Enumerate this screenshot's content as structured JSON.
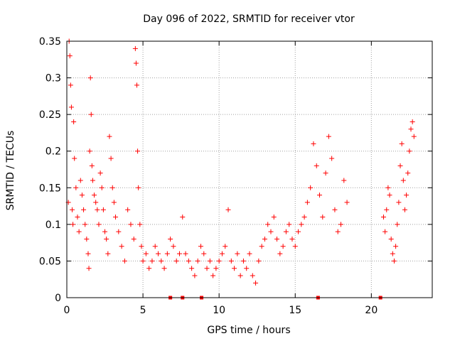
{
  "chart_data": {
    "type": "scatter",
    "title": "Day 096 of 2022, SRMTID for receiver vtor",
    "xlabel": "GPS time / hours",
    "ylabel": "SRMTID / TECUs",
    "xlim": [
      0,
      24
    ],
    "ylim": [
      0,
      0.35
    ],
    "x_ticks": [
      0,
      5,
      10,
      15,
      20
    ],
    "x_tick_labels": [
      "0",
      "5",
      "10",
      "15",
      "20"
    ],
    "y_ticks": [
      0,
      0.05,
      0.1,
      0.15,
      0.2,
      0.25,
      0.3,
      0.35
    ],
    "y_tick_labels": [
      "0",
      "0.05",
      "0.1",
      "0.15",
      "0.2",
      "0.25",
      "0.3",
      "0.35"
    ],
    "grid": true,
    "marker": "+",
    "color": "#ff0000",
    "gap_markers_x": [
      6.8,
      7.6,
      8.85,
      16.5,
      20.6
    ],
    "series": [
      {
        "name": "SRMTID",
        "points": [
          [
            0.1,
            0.13
          ],
          [
            0.15,
            0.35
          ],
          [
            0.2,
            0.33
          ],
          [
            0.25,
            0.29
          ],
          [
            0.3,
            0.26
          ],
          [
            0.35,
            0.12
          ],
          [
            0.4,
            0.1
          ],
          [
            0.45,
            0.24
          ],
          [
            0.5,
            0.19
          ],
          [
            0.6,
            0.15
          ],
          [
            0.7,
            0.11
          ],
          [
            0.8,
            0.09
          ],
          [
            0.9,
            0.16
          ],
          [
            1.0,
            0.14
          ],
          [
            1.1,
            0.12
          ],
          [
            1.2,
            0.1
          ],
          [
            1.3,
            0.08
          ],
          [
            1.4,
            0.06
          ],
          [
            1.45,
            0.04
          ],
          [
            1.5,
            0.2
          ],
          [
            1.55,
            0.3
          ],
          [
            1.6,
            0.25
          ],
          [
            1.65,
            0.18
          ],
          [
            1.7,
            0.16
          ],
          [
            1.8,
            0.14
          ],
          [
            1.9,
            0.13
          ],
          [
            2.0,
            0.12
          ],
          [
            2.1,
            0.1
          ],
          [
            2.2,
            0.17
          ],
          [
            2.3,
            0.15
          ],
          [
            2.4,
            0.12
          ],
          [
            2.5,
            0.09
          ],
          [
            2.6,
            0.08
          ],
          [
            2.7,
            0.06
          ],
          [
            2.8,
            0.22
          ],
          [
            2.9,
            0.19
          ],
          [
            3.0,
            0.15
          ],
          [
            3.1,
            0.13
          ],
          [
            3.2,
            0.11
          ],
          [
            3.4,
            0.09
          ],
          [
            3.6,
            0.07
          ],
          [
            3.8,
            0.05
          ],
          [
            4.0,
            0.12
          ],
          [
            4.2,
            0.1
          ],
          [
            4.4,
            0.08
          ],
          [
            4.5,
            0.34
          ],
          [
            4.55,
            0.32
          ],
          [
            4.6,
            0.29
          ],
          [
            4.65,
            0.2
          ],
          [
            4.7,
            0.15
          ],
          [
            4.8,
            0.1
          ],
          [
            4.9,
            0.07
          ],
          [
            5.0,
            0.05
          ],
          [
            5.2,
            0.06
          ],
          [
            5.4,
            0.04
          ],
          [
            5.6,
            0.05
          ],
          [
            5.8,
            0.07
          ],
          [
            6.0,
            0.06
          ],
          [
            6.2,
            0.05
          ],
          [
            6.4,
            0.04
          ],
          [
            6.6,
            0.06
          ],
          [
            6.8,
            0.08
          ],
          [
            7.0,
            0.07
          ],
          [
            7.2,
            0.05
          ],
          [
            7.4,
            0.06
          ],
          [
            7.6,
            0.11
          ],
          [
            7.8,
            0.06
          ],
          [
            8.0,
            0.05
          ],
          [
            8.2,
            0.04
          ],
          [
            8.4,
            0.03
          ],
          [
            8.6,
            0.05
          ],
          [
            8.8,
            0.07
          ],
          [
            9.0,
            0.06
          ],
          [
            9.2,
            0.04
          ],
          [
            9.4,
            0.05
          ],
          [
            9.6,
            0.03
          ],
          [
            9.8,
            0.04
          ],
          [
            10.0,
            0.05
          ],
          [
            10.2,
            0.06
          ],
          [
            10.4,
            0.07
          ],
          [
            10.6,
            0.12
          ],
          [
            10.8,
            0.05
          ],
          [
            11.0,
            0.04
          ],
          [
            11.2,
            0.06
          ],
          [
            11.4,
            0.03
          ],
          [
            11.6,
            0.05
          ],
          [
            11.8,
            0.04
          ],
          [
            12.0,
            0.06
          ],
          [
            12.2,
            0.03
          ],
          [
            12.4,
            0.02
          ],
          [
            12.6,
            0.05
          ],
          [
            12.8,
            0.07
          ],
          [
            13.0,
            0.08
          ],
          [
            13.2,
            0.1
          ],
          [
            13.4,
            0.09
          ],
          [
            13.6,
            0.11
          ],
          [
            13.8,
            0.08
          ],
          [
            14.0,
            0.06
          ],
          [
            14.2,
            0.07
          ],
          [
            14.4,
            0.09
          ],
          [
            14.6,
            0.1
          ],
          [
            14.8,
            0.08
          ],
          [
            15.0,
            0.07
          ],
          [
            15.2,
            0.09
          ],
          [
            15.4,
            0.1
          ],
          [
            15.6,
            0.11
          ],
          [
            15.8,
            0.13
          ],
          [
            16.0,
            0.15
          ],
          [
            16.2,
            0.21
          ],
          [
            16.4,
            0.18
          ],
          [
            16.6,
            0.14
          ],
          [
            16.8,
            0.11
          ],
          [
            17.0,
            0.17
          ],
          [
            17.2,
            0.22
          ],
          [
            17.4,
            0.19
          ],
          [
            17.6,
            0.12
          ],
          [
            17.8,
            0.09
          ],
          [
            18.0,
            0.1
          ],
          [
            18.2,
            0.16
          ],
          [
            18.4,
            0.13
          ],
          [
            20.8,
            0.11
          ],
          [
            20.9,
            0.09
          ],
          [
            21.0,
            0.12
          ],
          [
            21.1,
            0.15
          ],
          [
            21.2,
            0.14
          ],
          [
            21.3,
            0.08
          ],
          [
            21.4,
            0.06
          ],
          [
            21.5,
            0.05
          ],
          [
            21.6,
            0.07
          ],
          [
            21.7,
            0.1
          ],
          [
            21.8,
            0.13
          ],
          [
            21.9,
            0.18
          ],
          [
            22.0,
            0.21
          ],
          [
            22.1,
            0.16
          ],
          [
            22.2,
            0.12
          ],
          [
            22.3,
            0.14
          ],
          [
            22.4,
            0.17
          ],
          [
            22.5,
            0.2
          ],
          [
            22.6,
            0.23
          ],
          [
            22.7,
            0.24
          ],
          [
            22.8,
            0.22
          ]
        ]
      }
    ]
  }
}
